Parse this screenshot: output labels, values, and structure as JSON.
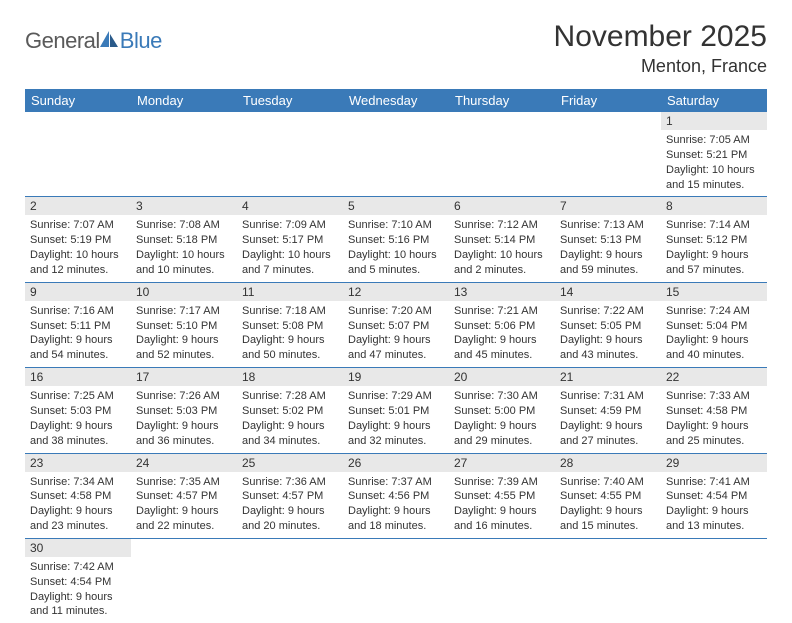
{
  "brand": {
    "part1": "General",
    "part2": "Blue"
  },
  "title": "November 2025",
  "location": "Menton, France",
  "colors": {
    "header_bg": "#3a7ab8",
    "header_text": "#ffffff",
    "daynum_bg": "#e8e8e8",
    "border": "#3a7ab8",
    "text": "#333333",
    "logo_gray": "#5a5a5a",
    "logo_blue": "#3a7ab8"
  },
  "weekdays": [
    "Sunday",
    "Monday",
    "Tuesday",
    "Wednesday",
    "Thursday",
    "Friday",
    "Saturday"
  ],
  "weeks": [
    [
      null,
      null,
      null,
      null,
      null,
      null,
      {
        "n": "1",
        "sr": "Sunrise: 7:05 AM",
        "ss": "Sunset: 5:21 PM",
        "dl1": "Daylight: 10 hours",
        "dl2": "and 15 minutes."
      }
    ],
    [
      {
        "n": "2",
        "sr": "Sunrise: 7:07 AM",
        "ss": "Sunset: 5:19 PM",
        "dl1": "Daylight: 10 hours",
        "dl2": "and 12 minutes."
      },
      {
        "n": "3",
        "sr": "Sunrise: 7:08 AM",
        "ss": "Sunset: 5:18 PM",
        "dl1": "Daylight: 10 hours",
        "dl2": "and 10 minutes."
      },
      {
        "n": "4",
        "sr": "Sunrise: 7:09 AM",
        "ss": "Sunset: 5:17 PM",
        "dl1": "Daylight: 10 hours",
        "dl2": "and 7 minutes."
      },
      {
        "n": "5",
        "sr": "Sunrise: 7:10 AM",
        "ss": "Sunset: 5:16 PM",
        "dl1": "Daylight: 10 hours",
        "dl2": "and 5 minutes."
      },
      {
        "n": "6",
        "sr": "Sunrise: 7:12 AM",
        "ss": "Sunset: 5:14 PM",
        "dl1": "Daylight: 10 hours",
        "dl2": "and 2 minutes."
      },
      {
        "n": "7",
        "sr": "Sunrise: 7:13 AM",
        "ss": "Sunset: 5:13 PM",
        "dl1": "Daylight: 9 hours",
        "dl2": "and 59 minutes."
      },
      {
        "n": "8",
        "sr": "Sunrise: 7:14 AM",
        "ss": "Sunset: 5:12 PM",
        "dl1": "Daylight: 9 hours",
        "dl2": "and 57 minutes."
      }
    ],
    [
      {
        "n": "9",
        "sr": "Sunrise: 7:16 AM",
        "ss": "Sunset: 5:11 PM",
        "dl1": "Daylight: 9 hours",
        "dl2": "and 54 minutes."
      },
      {
        "n": "10",
        "sr": "Sunrise: 7:17 AM",
        "ss": "Sunset: 5:10 PM",
        "dl1": "Daylight: 9 hours",
        "dl2": "and 52 minutes."
      },
      {
        "n": "11",
        "sr": "Sunrise: 7:18 AM",
        "ss": "Sunset: 5:08 PM",
        "dl1": "Daylight: 9 hours",
        "dl2": "and 50 minutes."
      },
      {
        "n": "12",
        "sr": "Sunrise: 7:20 AM",
        "ss": "Sunset: 5:07 PM",
        "dl1": "Daylight: 9 hours",
        "dl2": "and 47 minutes."
      },
      {
        "n": "13",
        "sr": "Sunrise: 7:21 AM",
        "ss": "Sunset: 5:06 PM",
        "dl1": "Daylight: 9 hours",
        "dl2": "and 45 minutes."
      },
      {
        "n": "14",
        "sr": "Sunrise: 7:22 AM",
        "ss": "Sunset: 5:05 PM",
        "dl1": "Daylight: 9 hours",
        "dl2": "and 43 minutes."
      },
      {
        "n": "15",
        "sr": "Sunrise: 7:24 AM",
        "ss": "Sunset: 5:04 PM",
        "dl1": "Daylight: 9 hours",
        "dl2": "and 40 minutes."
      }
    ],
    [
      {
        "n": "16",
        "sr": "Sunrise: 7:25 AM",
        "ss": "Sunset: 5:03 PM",
        "dl1": "Daylight: 9 hours",
        "dl2": "and 38 minutes."
      },
      {
        "n": "17",
        "sr": "Sunrise: 7:26 AM",
        "ss": "Sunset: 5:03 PM",
        "dl1": "Daylight: 9 hours",
        "dl2": "and 36 minutes."
      },
      {
        "n": "18",
        "sr": "Sunrise: 7:28 AM",
        "ss": "Sunset: 5:02 PM",
        "dl1": "Daylight: 9 hours",
        "dl2": "and 34 minutes."
      },
      {
        "n": "19",
        "sr": "Sunrise: 7:29 AM",
        "ss": "Sunset: 5:01 PM",
        "dl1": "Daylight: 9 hours",
        "dl2": "and 32 minutes."
      },
      {
        "n": "20",
        "sr": "Sunrise: 7:30 AM",
        "ss": "Sunset: 5:00 PM",
        "dl1": "Daylight: 9 hours",
        "dl2": "and 29 minutes."
      },
      {
        "n": "21",
        "sr": "Sunrise: 7:31 AM",
        "ss": "Sunset: 4:59 PM",
        "dl1": "Daylight: 9 hours",
        "dl2": "and 27 minutes."
      },
      {
        "n": "22",
        "sr": "Sunrise: 7:33 AM",
        "ss": "Sunset: 4:58 PM",
        "dl1": "Daylight: 9 hours",
        "dl2": "and 25 minutes."
      }
    ],
    [
      {
        "n": "23",
        "sr": "Sunrise: 7:34 AM",
        "ss": "Sunset: 4:58 PM",
        "dl1": "Daylight: 9 hours",
        "dl2": "and 23 minutes."
      },
      {
        "n": "24",
        "sr": "Sunrise: 7:35 AM",
        "ss": "Sunset: 4:57 PM",
        "dl1": "Daylight: 9 hours",
        "dl2": "and 22 minutes."
      },
      {
        "n": "25",
        "sr": "Sunrise: 7:36 AM",
        "ss": "Sunset: 4:57 PM",
        "dl1": "Daylight: 9 hours",
        "dl2": "and 20 minutes."
      },
      {
        "n": "26",
        "sr": "Sunrise: 7:37 AM",
        "ss": "Sunset: 4:56 PM",
        "dl1": "Daylight: 9 hours",
        "dl2": "and 18 minutes."
      },
      {
        "n": "27",
        "sr": "Sunrise: 7:39 AM",
        "ss": "Sunset: 4:55 PM",
        "dl1": "Daylight: 9 hours",
        "dl2": "and 16 minutes."
      },
      {
        "n": "28",
        "sr": "Sunrise: 7:40 AM",
        "ss": "Sunset: 4:55 PM",
        "dl1": "Daylight: 9 hours",
        "dl2": "and 15 minutes."
      },
      {
        "n": "29",
        "sr": "Sunrise: 7:41 AM",
        "ss": "Sunset: 4:54 PM",
        "dl1": "Daylight: 9 hours",
        "dl2": "and 13 minutes."
      }
    ],
    [
      {
        "n": "30",
        "sr": "Sunrise: 7:42 AM",
        "ss": "Sunset: 4:54 PM",
        "dl1": "Daylight: 9 hours",
        "dl2": "and 11 minutes."
      },
      null,
      null,
      null,
      null,
      null,
      null
    ]
  ]
}
